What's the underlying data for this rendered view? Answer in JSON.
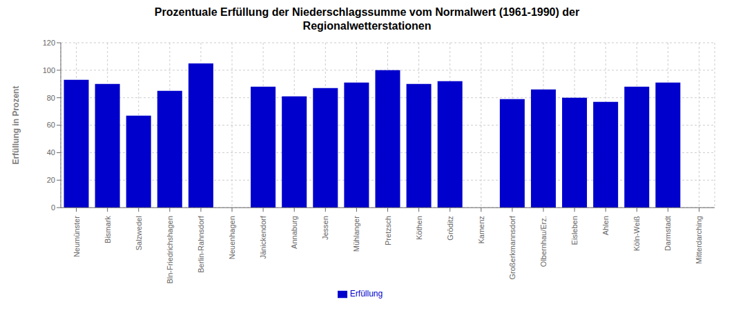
{
  "chart_data": {
    "type": "bar",
    "title": "Prozentuale Erfüllung der Niederschlagssumme vom Normalwert (1961-1990) der\nRegionalwetterstationen",
    "ylabel": "Erfüllung in Prozent",
    "categories": [
      "Neumünster",
      "Bismark",
      "Salzwedel",
      "Bln-Friedrichshagen",
      "Berlin-Rahnsdorf",
      "Neuenhagen",
      "Jänickendorf",
      "Annaburg",
      "Jessen",
      "Mühlanger",
      "Pretzsch",
      "Köthen",
      "Gröditz",
      "Kamenz",
      "Großerkmannsdorf",
      "Olbernhau/Erz.",
      "Eisleben",
      "Ahlen",
      "Köln-Weiß",
      "Darmstadt",
      "Mitterdarching"
    ],
    "series": [
      {
        "name": "Erfüllung",
        "color": "#0000CC",
        "values": [
          93,
          90,
          67,
          85,
          105,
          0,
          88,
          81,
          87,
          91,
          100,
          90,
          92,
          0,
          79,
          86,
          80,
          77,
          88,
          91,
          0
        ]
      }
    ],
    "ylim": [
      0,
      120
    ],
    "yticks": [
      0,
      20,
      40,
      60,
      80,
      100,
      120
    ],
    "grid": true,
    "legend": "bottom"
  }
}
